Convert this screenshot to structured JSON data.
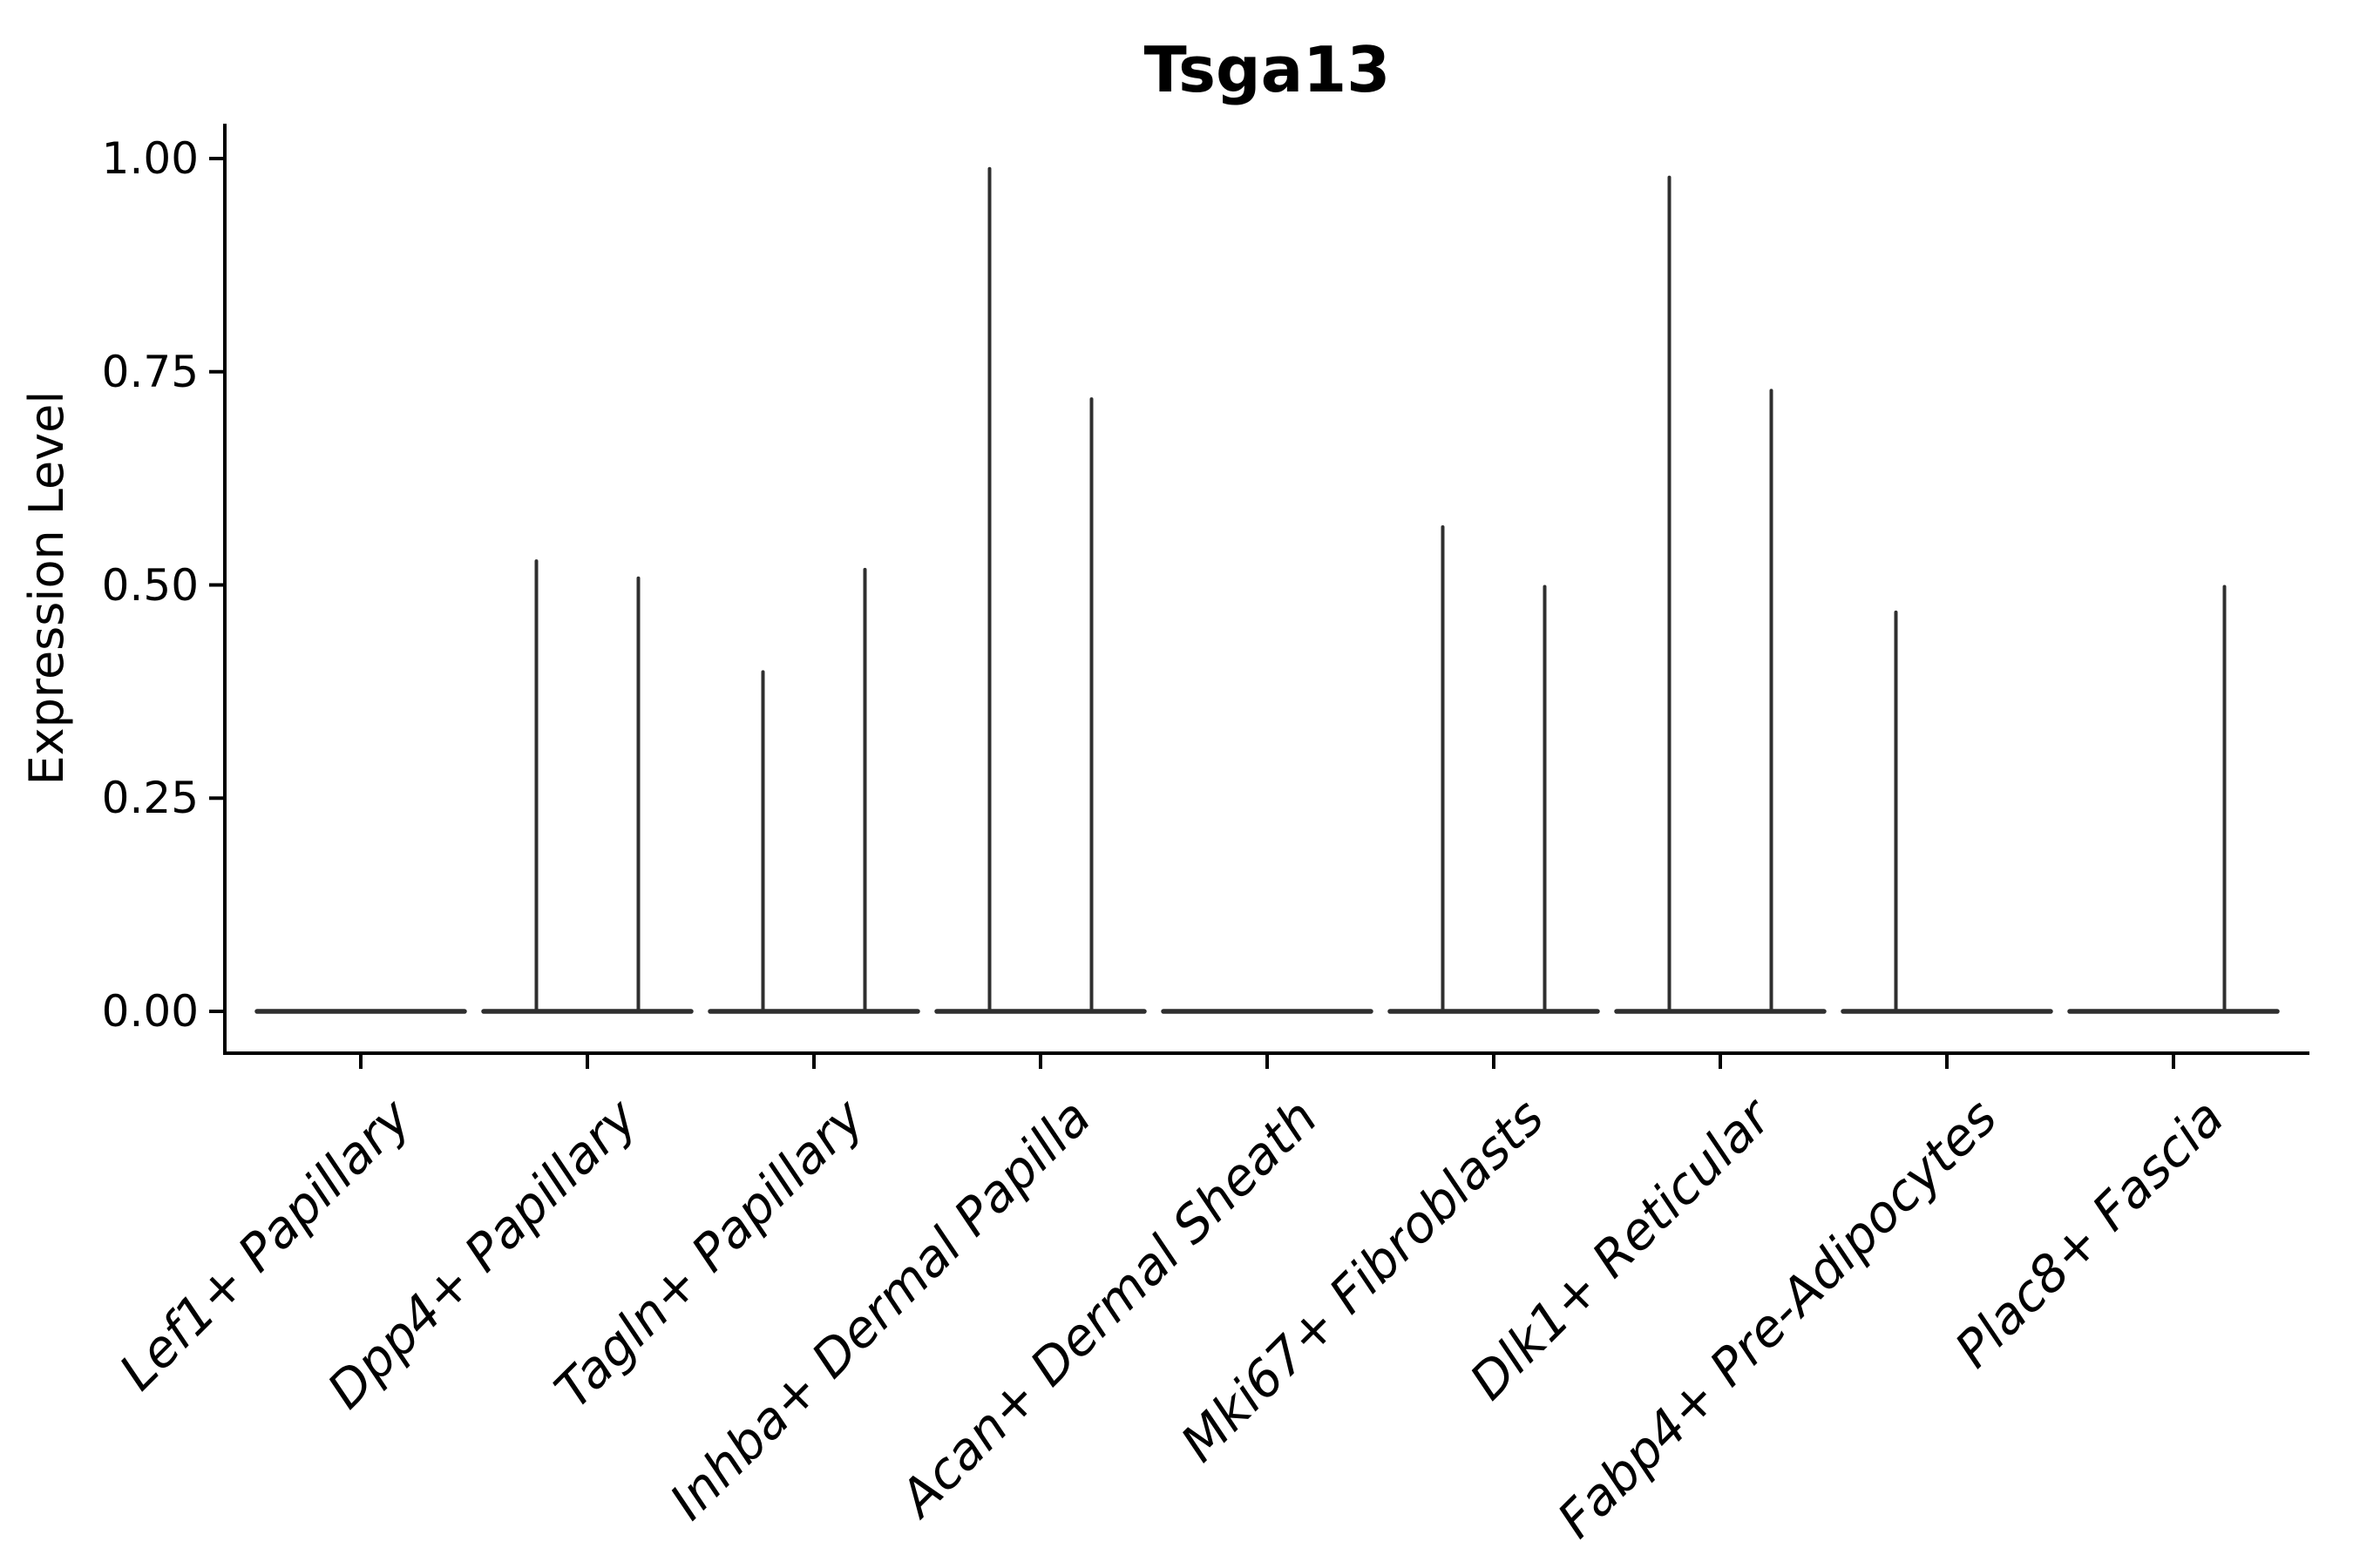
{
  "title": "Tsga13",
  "axes": {
    "y_label": "Expression Level",
    "y_ticks": [
      {
        "label": "0.00",
        "value": 0.0
      },
      {
        "label": "0.25",
        "value": 0.25
      },
      {
        "label": "0.50",
        "value": 0.5
      },
      {
        "label": "0.75",
        "value": 0.75
      },
      {
        "label": "1.00",
        "value": 1.0
      }
    ]
  },
  "colors": {
    "background": "#ffffff",
    "axis": "#000000",
    "text": "#000000",
    "violin": "#2f2f2f"
  },
  "chart_data": {
    "type": "violin",
    "title": "Tsga13",
    "xlabel": "",
    "ylabel": "Expression Level",
    "ylim": [
      -0.05,
      1.04
    ],
    "y_tick_values": [
      0.0,
      0.25,
      0.5,
      0.75,
      1.0
    ],
    "grid": false,
    "legend": false,
    "categories": [
      "Lef1+ Papillary",
      "Dpp4+ Papillary",
      "Tagln+ Papillary",
      "Inhba+ Dermal Papilla",
      "Acan+ Dermal Sheath",
      "Mki67+ Fibroblasts",
      "Dlk1+ Reticular",
      "Fabp4+ Pre-Adipocytes",
      "Plac8+ Fascia"
    ],
    "groups_per_category": 2,
    "series": [
      {
        "name": "left",
        "values": [
          0,
          0.53,
          0.4,
          0.99,
          0,
          0.57,
          0.98,
          0.47,
          0
        ]
      },
      {
        "name": "right",
        "values": [
          0,
          0.51,
          0.52,
          0.72,
          0,
          0.5,
          0.73,
          0,
          0.5
        ]
      }
    ],
    "note": "Each category holds two side-by-side violins; distributions are concentrated at 0 (flat baseline) with a thin spike up to the max value listed in series values. A value of 0 means a flat violin with no spike."
  }
}
